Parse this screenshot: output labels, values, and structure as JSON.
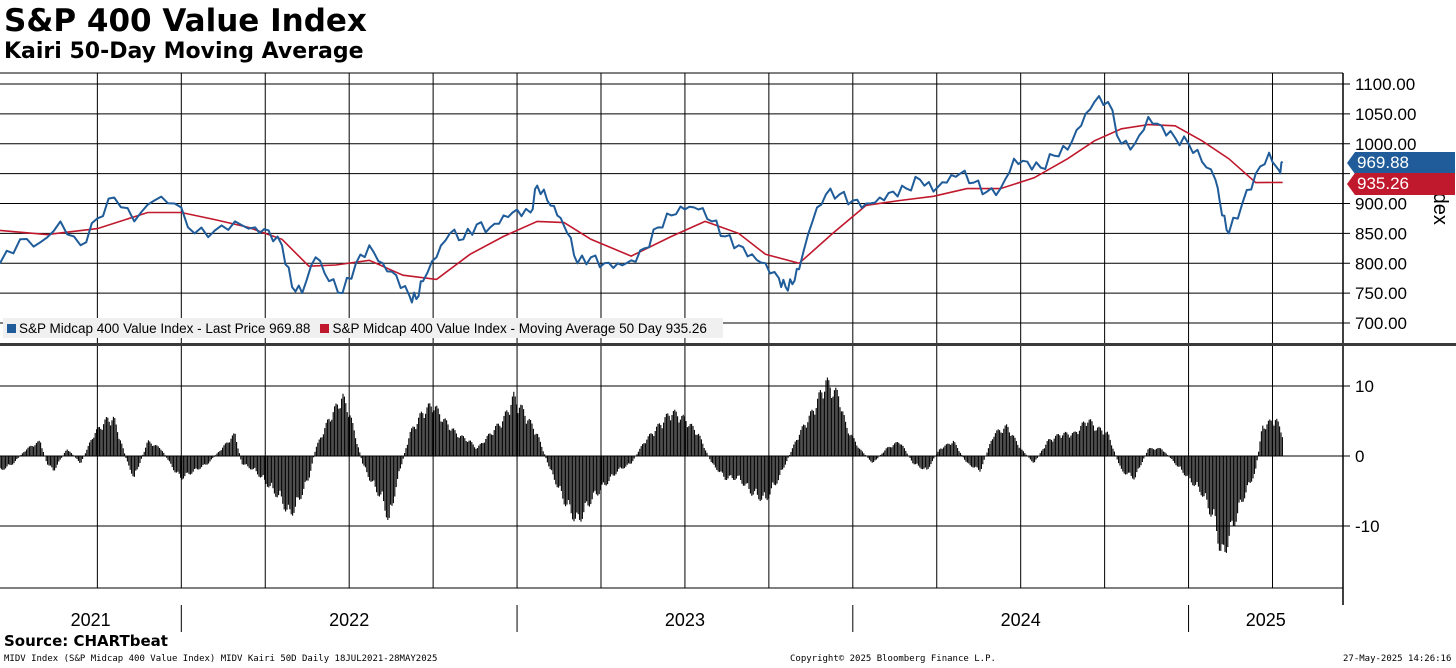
{
  "header": {
    "title": "S&P 400 Value Index",
    "subtitle": "Kairi 50-Day Moving Average"
  },
  "footer": {
    "source": "Source: CHARTbeat",
    "ticker_info": "MIDV Index (S&P Midcap 400 Value Index) MIDV Kairi 50D  Daily 18JUL2021-28MAY2025",
    "copyright": "Copyright© 2025 Bloomberg Finance L.P.",
    "timestamp": "27-May-2025 14:26:16"
  },
  "legend": {
    "price_label": "S&P Midcap 400 Value Index - Last Price 969.88",
    "ma_label": "S&P Midcap 400 Value Index - Moving Average 50 Day 935.26"
  },
  "tags": {
    "last_price": "969.88",
    "moving_average": "935.26"
  },
  "colors": {
    "price": "#1f5c99",
    "moving_average": "#c0182c",
    "kairi": "#000000",
    "grid": "#000000"
  },
  "chart_data": [
    {
      "type": "line",
      "title": "S&P 400 Value Index",
      "ylabel": "Index",
      "ylim": [
        650,
        1125
      ],
      "yticks": [
        "1100.00",
        "1050.00",
        "1000.00",
        "950.00",
        "900.00",
        "850.00",
        "800.00",
        "750.00",
        "700.00"
      ],
      "xlim": [
        2021.46,
        2025.46
      ],
      "x_tick_labels": [
        "2021",
        "2022",
        "2023",
        "2024",
        "2025"
      ],
      "series": [
        {
          "name": "S&P Midcap 400 Value Index - Last Price",
          "last": 969.88,
          "points": [
            [
              2021.46,
              800
            ],
            [
              2021.52,
              840
            ],
            [
              2021.58,
              835
            ],
            [
              2021.64,
              870
            ],
            [
              2021.7,
              830
            ],
            [
              2021.75,
              875
            ],
            [
              2021.8,
              910
            ],
            [
              2021.86,
              870
            ],
            [
              2021.92,
              905
            ],
            [
              2021.98,
              900
            ],
            [
              2022.04,
              850
            ],
            [
              2022.1,
              855
            ],
            [
              2022.16,
              870
            ],
            [
              2022.22,
              860
            ],
            [
              2022.26,
              855
            ],
            [
              2022.3,
              830
            ],
            [
              2022.33,
              760
            ],
            [
              2022.36,
              750
            ],
            [
              2022.4,
              810
            ],
            [
              2022.44,
              770
            ],
            [
              2022.48,
              750
            ],
            [
              2022.52,
              800
            ],
            [
              2022.56,
              830
            ],
            [
              2022.6,
              800
            ],
            [
              2022.64,
              780
            ],
            [
              2022.68,
              745
            ],
            [
              2022.7,
              740
            ],
            [
              2022.72,
              770
            ],
            [
              2022.76,
              810
            ],
            [
              2022.8,
              850
            ],
            [
              2022.84,
              840
            ],
            [
              2022.88,
              865
            ],
            [
              2022.92,
              860
            ],
            [
              2022.96,
              880
            ],
            [
              2023.0,
              890
            ],
            [
              2023.04,
              885
            ],
            [
              2023.06,
              930
            ],
            [
              2023.09,
              905
            ],
            [
              2023.12,
              880
            ],
            [
              2023.15,
              850
            ],
            [
              2023.18,
              800
            ],
            [
              2023.22,
              810
            ],
            [
              2023.26,
              800
            ],
            [
              2023.3,
              800
            ],
            [
              2023.34,
              805
            ],
            [
              2023.38,
              825
            ],
            [
              2023.42,
              860
            ],
            [
              2023.46,
              880
            ],
            [
              2023.5,
              890
            ],
            [
              2023.54,
              890
            ],
            [
              2023.58,
              870
            ],
            [
              2023.62,
              845
            ],
            [
              2023.66,
              830
            ],
            [
              2023.7,
              815
            ],
            [
              2023.74,
              800
            ],
            [
              2023.78,
              775
            ],
            [
              2023.8,
              760
            ],
            [
              2023.82,
              765
            ],
            [
              2023.84,
              790
            ],
            [
              2023.88,
              870
            ],
            [
              2023.92,
              915
            ],
            [
              2023.96,
              915
            ],
            [
              2024.0,
              905
            ],
            [
              2024.04,
              900
            ],
            [
              2024.08,
              910
            ],
            [
              2024.12,
              920
            ],
            [
              2024.16,
              925
            ],
            [
              2024.2,
              940
            ],
            [
              2024.24,
              920
            ],
            [
              2024.28,
              935
            ],
            [
              2024.32,
              950
            ],
            [
              2024.36,
              935
            ],
            [
              2024.4,
              920
            ],
            [
              2024.44,
              925
            ],
            [
              2024.48,
              975
            ],
            [
              2024.52,
              970
            ],
            [
              2024.56,
              960
            ],
            [
              2024.6,
              980
            ],
            [
              2024.64,
              990
            ],
            [
              2024.68,
              1030
            ],
            [
              2024.72,
              1070
            ],
            [
              2024.76,
              1070
            ],
            [
              2024.8,
              1000
            ],
            [
              2024.84,
              1000
            ],
            [
              2024.88,
              1045
            ],
            [
              2024.92,
              1030
            ],
            [
              2024.96,
              1010
            ],
            [
              2025.0,
              1000
            ],
            [
              2025.04,
              970
            ],
            [
              2025.08,
              940
            ],
            [
              2025.1,
              880
            ],
            [
              2025.12,
              850
            ],
            [
              2025.16,
              900
            ],
            [
              2025.2,
              950
            ],
            [
              2025.24,
              985
            ],
            [
              2025.27,
              955
            ],
            [
              2025.28,
              969.88
            ]
          ]
        },
        {
          "name": "S&P Midcap 400 Value Index - Moving Average 50 Day",
          "last": 935.26,
          "points": [
            [
              2021.46,
              855
            ],
            [
              2021.6,
              848
            ],
            [
              2021.75,
              858
            ],
            [
              2021.9,
              885
            ],
            [
              2022.0,
              885
            ],
            [
              2022.1,
              873
            ],
            [
              2022.2,
              860
            ],
            [
              2022.3,
              840
            ],
            [
              2022.38,
              795
            ],
            [
              2022.46,
              797
            ],
            [
              2022.56,
              805
            ],
            [
              2022.66,
              780
            ],
            [
              2022.76,
              773
            ],
            [
              2022.86,
              815
            ],
            [
              2022.96,
              845
            ],
            [
              2023.06,
              870
            ],
            [
              2023.14,
              868
            ],
            [
              2023.22,
              840
            ],
            [
              2023.34,
              812
            ],
            [
              2023.46,
              845
            ],
            [
              2023.56,
              870
            ],
            [
              2023.66,
              850
            ],
            [
              2023.74,
              815
            ],
            [
              2023.84,
              800
            ],
            [
              2023.94,
              850
            ],
            [
              2024.04,
              897
            ],
            [
              2024.14,
              905
            ],
            [
              2024.24,
              912
            ],
            [
              2024.34,
              925
            ],
            [
              2024.44,
              925
            ],
            [
              2024.54,
              943
            ],
            [
              2024.64,
              975
            ],
            [
              2024.72,
              1005
            ],
            [
              2024.8,
              1025
            ],
            [
              2024.88,
              1032
            ],
            [
              2024.96,
              1030
            ],
            [
              2025.04,
              1005
            ],
            [
              2025.12,
              975
            ],
            [
              2025.2,
              935
            ],
            [
              2025.28,
              935.26
            ]
          ]
        }
      ]
    },
    {
      "type": "bar",
      "title": "Kairi 50-Day Moving Average",
      "ylim": [
        -19,
        13
      ],
      "yticks": [
        "10",
        "0",
        "-10"
      ],
      "series": [
        {
          "name": "MIDV Kairi 50D",
          "points": [
            [
              2021.46,
              -2
            ],
            [
              2021.5,
              -1
            ],
            [
              2021.54,
              1
            ],
            [
              2021.58,
              2
            ],
            [
              2021.6,
              -1
            ],
            [
              2021.62,
              -2
            ],
            [
              2021.66,
              1
            ],
            [
              2021.7,
              -1
            ],
            [
              2021.74,
              3
            ],
            [
              2021.78,
              5
            ],
            [
              2021.8,
              5
            ],
            [
              2021.84,
              -1
            ],
            [
              2021.86,
              -3
            ],
            [
              2021.9,
              2
            ],
            [
              2021.94,
              1
            ],
            [
              2021.98,
              -2
            ],
            [
              2022.0,
              -3
            ],
            [
              2022.04,
              -2
            ],
            [
              2022.08,
              -1
            ],
            [
              2022.12,
              1
            ],
            [
              2022.16,
              3
            ],
            [
              2022.18,
              -1
            ],
            [
              2022.22,
              -2
            ],
            [
              2022.26,
              -4
            ],
            [
              2022.3,
              -6
            ],
            [
              2022.32,
              -8
            ],
            [
              2022.34,
              -7
            ],
            [
              2022.38,
              -3
            ],
            [
              2022.4,
              1
            ],
            [
              2022.44,
              5
            ],
            [
              2022.48,
              8
            ],
            [
              2022.5,
              6
            ],
            [
              2022.54,
              -1
            ],
            [
              2022.56,
              -3
            ],
            [
              2022.6,
              -6
            ],
            [
              2022.62,
              -9
            ],
            [
              2022.64,
              -4
            ],
            [
              2022.68,
              3
            ],
            [
              2022.72,
              6
            ],
            [
              2022.75,
              7
            ],
            [
              2022.78,
              5
            ],
            [
              2022.82,
              3
            ],
            [
              2022.86,
              2
            ],
            [
              2022.88,
              1
            ],
            [
              2022.92,
              3
            ],
            [
              2022.96,
              5
            ],
            [
              2022.99,
              8
            ],
            [
              2023.02,
              6
            ],
            [
              2023.06,
              3
            ],
            [
              2023.1,
              -2
            ],
            [
              2023.14,
              -6
            ],
            [
              2023.18,
              -9
            ],
            [
              2023.22,
              -6
            ],
            [
              2023.26,
              -4
            ],
            [
              2023.3,
              -2
            ],
            [
              2023.34,
              -1
            ],
            [
              2023.38,
              2
            ],
            [
              2023.42,
              4
            ],
            [
              2023.46,
              6
            ],
            [
              2023.5,
              5
            ],
            [
              2023.54,
              3
            ],
            [
              2023.58,
              -1
            ],
            [
              2023.62,
              -3
            ],
            [
              2023.66,
              -3
            ],
            [
              2023.7,
              -5
            ],
            [
              2023.74,
              -6
            ],
            [
              2023.78,
              -3
            ],
            [
              2023.8,
              -1
            ],
            [
              2023.84,
              3
            ],
            [
              2023.88,
              6
            ],
            [
              2023.92,
              10
            ],
            [
              2023.96,
              8
            ],
            [
              2023.98,
              4
            ],
            [
              2024.02,
              1
            ],
            [
              2024.06,
              -1
            ],
            [
              2024.1,
              1
            ],
            [
              2024.14,
              2
            ],
            [
              2024.18,
              -1
            ],
            [
              2024.22,
              -2
            ],
            [
              2024.26,
              1
            ],
            [
              2024.3,
              2
            ],
            [
              2024.34,
              -1
            ],
            [
              2024.38,
              -2
            ],
            [
              2024.42,
              3
            ],
            [
              2024.46,
              4
            ],
            [
              2024.5,
              1
            ],
            [
              2024.54,
              -1
            ],
            [
              2024.58,
              2
            ],
            [
              2024.62,
              3
            ],
            [
              2024.66,
              3
            ],
            [
              2024.7,
              5
            ],
            [
              2024.72,
              4
            ],
            [
              2024.76,
              3
            ],
            [
              2024.8,
              -2
            ],
            [
              2024.84,
              -3
            ],
            [
              2024.88,
              1
            ],
            [
              2024.92,
              1
            ],
            [
              2024.96,
              -1
            ],
            [
              2025.0,
              -3
            ],
            [
              2025.04,
              -5
            ],
            [
              2025.08,
              -9
            ],
            [
              2025.1,
              -14
            ],
            [
              2025.12,
              -11
            ],
            [
              2025.16,
              -6
            ],
            [
              2025.2,
              -2
            ],
            [
              2025.22,
              4
            ],
            [
              2025.26,
              5
            ],
            [
              2025.28,
              3
            ]
          ]
        }
      ]
    }
  ]
}
